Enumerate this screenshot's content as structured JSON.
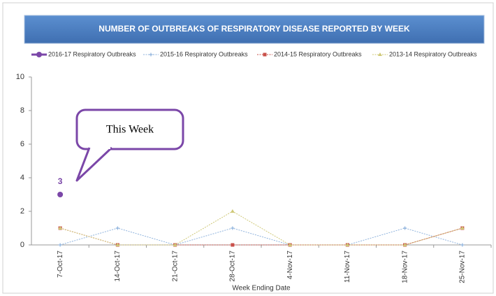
{
  "chart_data": {
    "type": "line",
    "title": "NUMBER OF OUTBREAKS OF RESPIRATORY DISEASE REPORTED BY WEEK",
    "x_label": "Week Ending Date",
    "annotation": "This Week",
    "categories": [
      "7-Oct-17",
      "14-Oct-17",
      "21-Oct-17",
      "28-Oct-17",
      "4-Nov-17",
      "11-Nov-17",
      "18-Nov-17",
      "25-Nov-17"
    ],
    "series": [
      {
        "name": "2016-17 Respiratory Outbreaks",
        "color": "#7b47a8",
        "marker": "circle",
        "values": [
          3,
          null,
          null,
          null,
          null,
          null,
          null,
          null
        ]
      },
      {
        "name": "2015-16 Respiratory Outbreaks",
        "color": "#8fb3dd",
        "marker": "plus",
        "values": [
          0,
          1,
          0,
          1,
          0,
          0,
          1,
          0
        ]
      },
      {
        "name": "2014-15 Respiratory Outbreaks",
        "color": "#c9504a",
        "marker": "square",
        "values": [
          1,
          0,
          0,
          0,
          0,
          0,
          0,
          1
        ]
      },
      {
        "name": "2013-14 Respiratory Outbreaks",
        "color": "#cfc877",
        "marker": "triangle",
        "values": [
          1,
          0,
          0,
          2,
          0,
          0,
          0,
          1
        ]
      }
    ],
    "ylim": [
      0,
      10
    ],
    "yticks": [
      0,
      2,
      4,
      6,
      8,
      10
    ],
    "grid": false
  }
}
